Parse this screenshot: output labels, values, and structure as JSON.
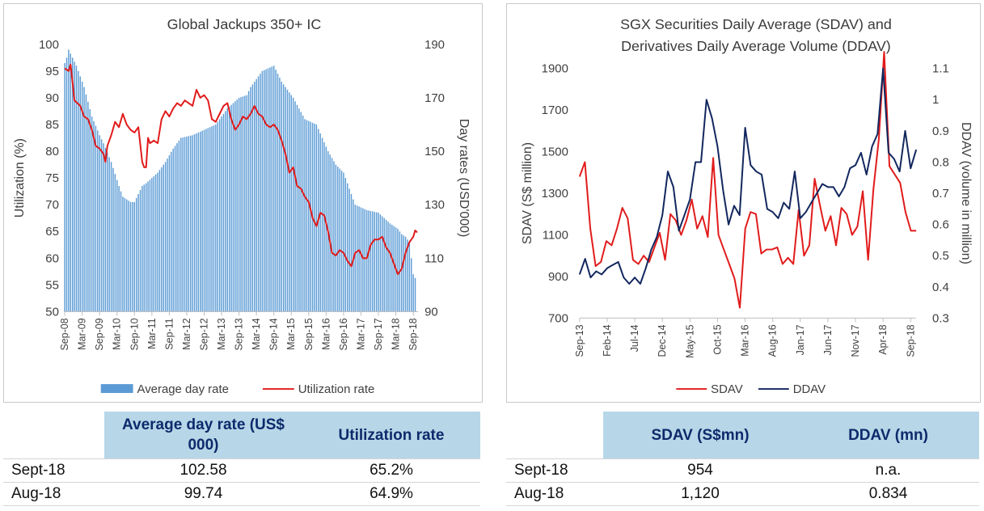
{
  "left_table": {
    "headers": [
      "",
      "Average day rate (US$ 000)",
      "Utilization rate"
    ],
    "rows": [
      {
        "label": "Sept-18",
        "c1": "102.58",
        "c2": "65.2%"
      },
      {
        "label": "Aug-18",
        "c1": "99.74",
        "c2": "64.9%"
      }
    ]
  },
  "right_table": {
    "headers": [
      "",
      "SDAV (S$mn)",
      "DDAV (mn)"
    ],
    "rows": [
      {
        "label": "Sept-18",
        "c1": "954",
        "c2": "n.a."
      },
      {
        "label": "Aug-18",
        "c1": "1,120",
        "c2": "0.834"
      }
    ]
  },
  "chart_data": [
    {
      "type": "bar",
      "title": "Global Jackups 350+ IC",
      "ylabel": "Utilization (%)",
      "y2label": "Day rates (USD'000)",
      "ylim": [
        50,
        100
      ],
      "yticks": [
        50,
        55,
        60,
        65,
        70,
        75,
        80,
        85,
        90,
        95,
        100
      ],
      "y2lim": [
        90,
        190
      ],
      "y2ticks": [
        90,
        110,
        130,
        150,
        170,
        190
      ],
      "x_tick_labels": [
        "Sep-08",
        "Mar-09",
        "Sep-09",
        "Mar-10",
        "Sep-10",
        "Mar-11",
        "Sep-11",
        "Mar-12",
        "Sep-12",
        "Mar-13",
        "Sep-13",
        "Mar-14",
        "Sep-14",
        "Mar-15",
        "Sep-15",
        "Mar-16",
        "Sep-16",
        "Mar-17",
        "Sep-17",
        "Mar-18",
        "Sep-18"
      ],
      "legend": [
        "Average day rate",
        "Utilization rate"
      ],
      "legend_position": "bottom",
      "colors": {
        "bars": "#5b9bd5",
        "line": "#e11b1b"
      },
      "grid": false,
      "series": [
        {
          "name": "Average day rate",
          "axis": "right",
          "type": "bar",
          "anchors": [
            [
              0,
              183
            ],
            [
              1,
              185
            ],
            [
              2,
              188
            ],
            [
              6,
              182
            ],
            [
              10,
              174
            ],
            [
              14,
              163
            ],
            [
              18,
              156
            ],
            [
              20,
              153
            ],
            [
              24,
              146
            ],
            [
              28,
              137
            ],
            [
              30,
              133
            ],
            [
              34,
              131
            ],
            [
              36,
              131
            ],
            [
              40,
              137
            ],
            [
              42,
              138
            ],
            [
              48,
              142
            ],
            [
              52,
              146
            ],
            [
              56,
              151
            ],
            [
              60,
              155
            ],
            [
              66,
              156
            ],
            [
              72,
              158
            ],
            [
              78,
              160
            ],
            [
              84,
              166
            ],
            [
              90,
              170
            ],
            [
              94,
              171
            ],
            [
              96,
              174
            ],
            [
              102,
              180
            ],
            [
              108,
              182
            ],
            [
              112,
              176
            ],
            [
              118,
              170
            ],
            [
              124,
              162
            ],
            [
              130,
              160
            ],
            [
              136,
              150
            ],
            [
              140,
              145
            ],
            [
              144,
              142
            ],
            [
              150,
              130
            ],
            [
              156,
              128
            ],
            [
              162,
              127
            ],
            [
              168,
              123
            ],
            [
              172,
              121
            ],
            [
              174,
              119
            ],
            [
              176,
              118
            ],
            [
              178,
              116
            ],
            [
              180,
              104
            ],
            [
              181,
              102.6
            ]
          ]
        },
        {
          "name": "Utilization rate",
          "axis": "left",
          "type": "line",
          "anchors": [
            [
              0,
              95.5
            ],
            [
              2,
              95
            ],
            [
              3,
              96.2
            ],
            [
              4,
              93
            ],
            [
              5,
              89.5
            ],
            [
              8,
              88.5
            ],
            [
              10,
              86.5
            ],
            [
              12,
              86
            ],
            [
              14,
              84
            ],
            [
              16,
              81
            ],
            [
              18,
              80.5
            ],
            [
              20,
              79.5
            ],
            [
              21,
              78
            ],
            [
              22,
              81
            ],
            [
              24,
              83
            ],
            [
              26,
              85.5
            ],
            [
              28,
              84.5
            ],
            [
              30,
              87
            ],
            [
              32,
              85
            ],
            [
              34,
              84
            ],
            [
              36,
              83.5
            ],
            [
              38,
              84.5
            ],
            [
              40,
              78
            ],
            [
              41,
              77
            ],
            [
              42,
              77
            ],
            [
              43,
              82.5
            ],
            [
              44,
              81.5
            ],
            [
              46,
              82
            ],
            [
              48,
              81.5
            ],
            [
              50,
              86
            ],
            [
              52,
              87.5
            ],
            [
              54,
              86.5
            ],
            [
              56,
              88
            ],
            [
              58,
              89
            ],
            [
              60,
              88.5
            ],
            [
              62,
              89.5
            ],
            [
              64,
              89
            ],
            [
              66,
              88.5
            ],
            [
              68,
              91.5
            ],
            [
              70,
              90
            ],
            [
              72,
              90.5
            ],
            [
              74,
              89.5
            ],
            [
              76,
              86
            ],
            [
              78,
              85.5
            ],
            [
              80,
              87
            ],
            [
              82,
              88.5
            ],
            [
              84,
              89
            ],
            [
              86,
              86
            ],
            [
              88,
              84
            ],
            [
              90,
              85
            ],
            [
              92,
              86.5
            ],
            [
              94,
              86
            ],
            [
              96,
              87
            ],
            [
              98,
              88.5
            ],
            [
              100,
              87
            ],
            [
              102,
              86.5
            ],
            [
              104,
              85
            ],
            [
              106,
              84.5
            ],
            [
              108,
              85
            ],
            [
              110,
              84
            ],
            [
              112,
              82
            ],
            [
              114,
              79.5
            ],
            [
              116,
              76
            ],
            [
              118,
              77
            ],
            [
              120,
              73.5
            ],
            [
              122,
              73
            ],
            [
              124,
              71.5
            ],
            [
              126,
              70.5
            ],
            [
              128,
              67.5
            ],
            [
              130,
              66
            ],
            [
              132,
              68.5
            ],
            [
              134,
              68
            ],
            [
              136,
              65
            ],
            [
              138,
              61
            ],
            [
              140,
              60.5
            ],
            [
              142,
              61.5
            ],
            [
              144,
              61
            ],
            [
              146,
              59.5
            ],
            [
              148,
              58.5
            ],
            [
              150,
              61
            ],
            [
              152,
              61.5
            ],
            [
              154,
              60
            ],
            [
              156,
              60
            ],
            [
              158,
              62.5
            ],
            [
              160,
              63.5
            ],
            [
              162,
              63.5
            ],
            [
              164,
              64
            ],
            [
              166,
              62
            ],
            [
              168,
              61
            ],
            [
              170,
              59
            ],
            [
              172,
              57
            ],
            [
              174,
              58
            ],
            [
              176,
              61
            ],
            [
              178,
              63
            ],
            [
              180,
              64
            ],
            [
              181,
              65.2
            ],
            [
              182,
              64.8
            ]
          ]
        }
      ]
    },
    {
      "type": "line",
      "title": "SGX Securities Daily Average (SDAV) and Derivatives Daily Average Volume (DDAV)",
      "title_lines": [
        "SGX Securities Daily Average (SDAV) and",
        "Derivatives Daily Average Volume (DDAV)"
      ],
      "ylabel": "SDAV (S$ million)",
      "y2label": "DDAV (volume in million)",
      "ylim": [
        700,
        1900
      ],
      "yticks": [
        700,
        900,
        1100,
        1300,
        1500,
        1700,
        1900
      ],
      "y2lim": [
        0.3,
        1.1
      ],
      "y2ticks": [
        0.3,
        0.4,
        0.5,
        0.6,
        0.7,
        0.8,
        0.9,
        1.0,
        1.1
      ],
      "x_tick_labels": [
        "Sep-13",
        "Feb-14",
        "Jul-14",
        "Dec-14",
        "May-15",
        "Oct-15",
        "Mar-16",
        "Aug-16",
        "Jan-17",
        "Jun-17",
        "Nov-17",
        "Apr-18",
        "Sep-18"
      ],
      "legend": [
        "SDAV",
        "DDAV"
      ],
      "legend_position": "bottom",
      "colors": {
        "SDAV": "#e11b1b",
        "DDAV": "#12275e"
      },
      "grid": false,
      "series": [
        {
          "name": "SDAV",
          "axis": "left",
          "values": [
            1380,
            1450,
            1130,
            950,
            970,
            1070,
            1050,
            1130,
            1230,
            1180,
            980,
            960,
            1000,
            970,
            1040,
            1110,
            980,
            1200,
            1170,
            1100,
            1170,
            1270,
            1130,
            1190,
            1090,
            1470,
            1100,
            1030,
            960,
            890,
            750,
            1130,
            1210,
            1200,
            1010,
            1030,
            1030,
            1040,
            960,
            990,
            960,
            1220,
            1000,
            1050,
            1370,
            1240,
            1120,
            1190,
            1050,
            1230,
            1200,
            1100,
            1140,
            1310,
            980,
            1320,
            1560,
            1980,
            1430,
            1390,
            1350,
            1210,
            1120,
            1120
          ]
        },
        {
          "name": "DDAV",
          "axis": "right",
          "values": [
            0.44,
            0.49,
            0.43,
            0.45,
            0.44,
            0.46,
            0.47,
            0.48,
            0.43,
            0.41,
            0.43,
            0.41,
            0.46,
            0.52,
            0.56,
            0.63,
            0.77,
            0.72,
            0.58,
            0.63,
            0.68,
            0.8,
            0.8,
            1.0,
            0.94,
            0.85,
            0.71,
            0.6,
            0.66,
            0.63,
            0.91,
            0.79,
            0.77,
            0.76,
            0.65,
            0.64,
            0.62,
            0.67,
            0.65,
            0.77,
            0.62,
            0.64,
            0.67,
            0.7,
            0.73,
            0.72,
            0.72,
            0.69,
            0.72,
            0.78,
            0.79,
            0.83,
            0.76,
            0.85,
            0.89,
            1.1,
            0.83,
            0.81,
            0.77,
            0.9,
            0.78,
            0.84
          ]
        }
      ]
    }
  ]
}
